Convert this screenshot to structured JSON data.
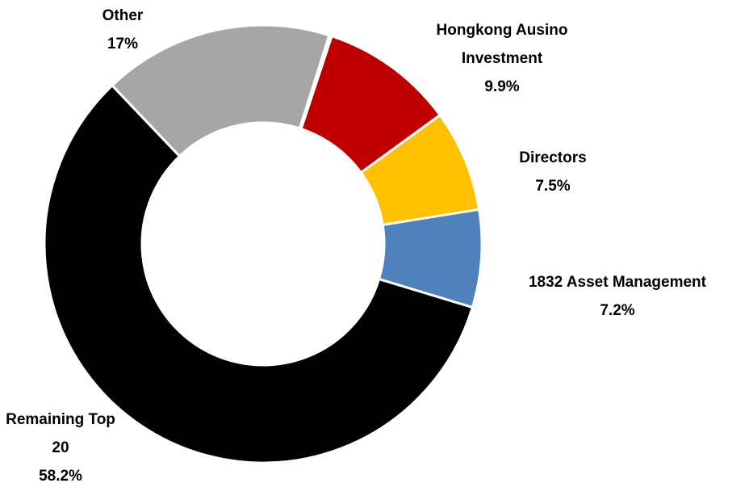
{
  "chart_data": {
    "type": "donut",
    "categories": [
      "Hongkong Ausino Investment",
      "Directors",
      "1832 Asset Management",
      "Remaining Top 20",
      "Other"
    ],
    "values": [
      9.9,
      7.5,
      7.2,
      58.2,
      17
    ],
    "value_labels": [
      "9.9%",
      "7.5%",
      "7.2%",
      "58.2%",
      "17%"
    ],
    "colors": [
      "#c00000",
      "#ffc000",
      "#4f81bd",
      "#000000",
      "#a6a6a6"
    ]
  }
}
